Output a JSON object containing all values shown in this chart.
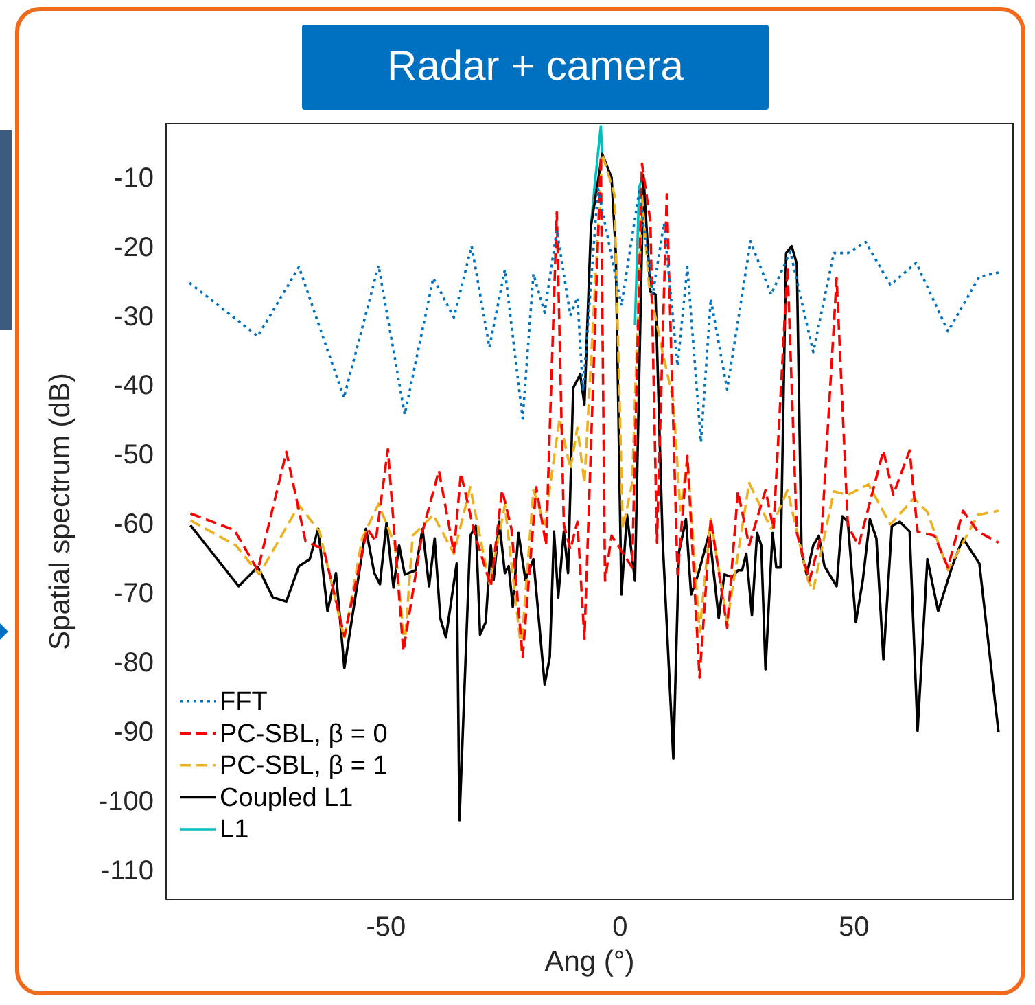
{
  "chart_data": {
    "type": "line",
    "title": "Radar + camera",
    "xlabel": "Ang (°)",
    "ylabel": "Spatial spectrum (dB)",
    "xlim": [
      -97,
      84
    ],
    "ylim": [
      -114,
      -2
    ],
    "xticks": [
      -50,
      0,
      50
    ],
    "yticks": [
      -110,
      -100,
      -90,
      -80,
      -70,
      -60,
      -50,
      -40,
      -30,
      -20,
      -10
    ],
    "grid": false,
    "legend": "bottom left",
    "series": [
      {
        "name": "FFT",
        "color": "#0072bd",
        "line_style": "dotted",
        "x": [
          -92,
          -77.4,
          -68.6,
          -59,
          -51.6,
          -46,
          -39.9,
          -35.5,
          -31.7,
          -27.9,
          -24.6,
          -20.8,
          -18.5,
          -16.1,
          -13.5,
          -10.6,
          -9.1,
          -7.9,
          -4.7,
          0.3,
          4.1,
          7,
          9.4,
          12.3,
          14.4,
          17.3,
          19.4,
          22.9,
          27.9,
          32.3,
          36.4,
          41.3,
          45.7,
          48.7,
          52.5,
          57.8,
          63.3,
          70.1,
          76.8,
          80.9
        ],
        "values": [
          -25,
          -32.7,
          -22.7,
          -41.6,
          -22.5,
          -44,
          -24.3,
          -30,
          -19.7,
          -34.3,
          -23.1,
          -44.6,
          -23.7,
          -29.3,
          -17.4,
          -29.7,
          -27.1,
          -40.6,
          -11.4,
          -28.3,
          -11.8,
          -26.7,
          -16.4,
          -37,
          -22.7,
          -48,
          -27.3,
          -40.4,
          -19,
          -26.7,
          -20.5,
          -35,
          -20.7,
          -20.7,
          -19.1,
          -25.3,
          -22.1,
          -32,
          -24.1,
          -23.5
        ]
      },
      {
        "name": "PC-SBL, β = 0",
        "color": "#ff0000",
        "line_style": "dashed",
        "x": [
          -91.8,
          -82.4,
          -77.4,
          -71.3,
          -67.2,
          -63.3,
          -58.9,
          -54,
          -52.2,
          -49.6,
          -46.3,
          -42.2,
          -38.7,
          -35.5,
          -34,
          -31.1,
          -27.6,
          -25.2,
          -23.2,
          -20.8,
          -17.9,
          -15.8,
          -13.5,
          -12,
          -10.6,
          -9.1,
          -7.6,
          -4.1,
          -3.2,
          -1.8,
          2.6,
          4.7,
          6.5,
          7.9,
          10,
          12.3,
          14.4,
          17,
          19.4,
          22.9,
          25.2,
          27.6,
          31.1,
          32.8,
          35.8,
          37.8,
          40.5,
          43.1,
          46.3,
          48.7,
          51,
          56.3,
          58.4,
          61.9,
          63.6,
          67.2,
          70.1,
          73.3,
          76.5,
          80.9
        ],
        "values": [
          -58.3,
          -60.7,
          -66.5,
          -49.4,
          -62.3,
          -63.5,
          -76,
          -60.5,
          -62.3,
          -49,
          -78.2,
          -60.9,
          -52.1,
          -63.9,
          -52.5,
          -61.1,
          -68.8,
          -54.9,
          -60.5,
          -79,
          -54.5,
          -62.9,
          -14.8,
          -59.9,
          -63.5,
          -59.5,
          -76.4,
          -6.8,
          -68,
          -61.5,
          -66.1,
          -7.8,
          -16.2,
          -62.5,
          -12.2,
          -67.1,
          -50,
          -82,
          -59.1,
          -74.8,
          -55.1,
          -62.9,
          -54.9,
          -60.5,
          -22.7,
          -61.1,
          -68,
          -61.1,
          -24.3,
          -60.1,
          -62.9,
          -49.2,
          -55.6,
          -49.2,
          -60.9,
          -61.5,
          -66.1,
          -57.9,
          -60.9,
          -62.5
        ]
      },
      {
        "name": "PC-SBL, β = 1",
        "color": "#edb120",
        "line_style": "dashed",
        "x": [
          -91.8,
          -82.1,
          -77.1,
          -68.6,
          -64.2,
          -58.9,
          -55.1,
          -51.6,
          -48.1,
          -46,
          -44.3,
          -39.9,
          -35.5,
          -32,
          -27.9,
          -24.6,
          -21.1,
          -18.5,
          -16.1,
          -12.9,
          -10.6,
          -9.1,
          -7.6,
          -3.8,
          -1.2,
          0.6,
          2.6,
          4.7,
          6.2,
          9.1,
          11.4,
          12.9,
          14.4,
          17,
          19.4,
          22.9,
          27.6,
          32.3,
          35.8,
          40.2,
          41.3,
          45.7,
          48.7,
          53.1,
          57.8,
          62.8,
          65.7,
          70.1,
          76.5,
          80.9
        ],
        "values": [
          -59.3,
          -62.9,
          -67.1,
          -57.1,
          -60.9,
          -76.4,
          -61.9,
          -56.9,
          -62.9,
          -77.4,
          -61.5,
          -58.5,
          -64.1,
          -54.5,
          -68.5,
          -57.1,
          -78,
          -54.9,
          -59.9,
          -44.6,
          -51.9,
          -45.9,
          -53.9,
          -6.4,
          -12.2,
          -60.5,
          -53.9,
          -12.4,
          -25.3,
          -35,
          -42,
          -57.9,
          -50.2,
          -75.4,
          -59.1,
          -74,
          -53.9,
          -60.5,
          -54.9,
          -68,
          -69.4,
          -55.1,
          -55.6,
          -54.1,
          -59.9,
          -56.1,
          -58.1,
          -66.5,
          -58.5,
          -57.9
        ]
      },
      {
        "name": "Coupled L1",
        "color": "#000000",
        "line_style": "solid",
        "x": [
          -91.8,
          -81.5,
          -77.4,
          -74.2,
          -71.3,
          -68.6,
          -66.3,
          -64.5,
          -62.5,
          -60.7,
          -58.9,
          -54.3,
          -52.5,
          -51.3,
          -49.9,
          -48.4,
          -47.2,
          -46,
          -43.7,
          -42.2,
          -40.8,
          -39.6,
          -38.4,
          -37.2,
          -34.9,
          -34.3,
          -32,
          -30.8,
          -29.9,
          -28.7,
          -27.6,
          -27,
          -25.8,
          -24.6,
          -23.8,
          -22.9,
          -21.7,
          -20.2,
          -18.5,
          -16.1,
          -15,
          -14.1,
          -13.2,
          -12,
          -11.1,
          -10,
          -8.5,
          -7.6,
          -6.2,
          -3.8,
          -1.8,
          -0.9,
          0.3,
          1.5,
          3.2,
          5,
          6.5,
          7.6,
          9.1,
          11.4,
          12.6,
          14.1,
          15.2,
          16.7,
          19.1,
          21.1,
          22.3,
          24,
          25.2,
          26.1,
          27,
          28.2,
          29.3,
          30.2,
          31.1,
          32.6,
          33.4,
          34.3,
          35.5,
          36.7,
          37.8,
          38.8,
          39.9,
          41.3,
          42.5,
          43.7,
          46.3,
          47.5,
          48.7,
          50.4,
          51.9,
          53.4,
          54.8,
          56.3,
          58.1,
          59.8,
          61.9,
          63.6,
          65.7,
          68,
          71,
          73.3,
          76.8,
          80.9
        ],
        "values": [
          -60,
          -68.8,
          -66,
          -70.4,
          -71,
          -65.9,
          -64.9,
          -60.5,
          -72.4,
          -66.9,
          -80.6,
          -60.5,
          -66.9,
          -68.5,
          -59.7,
          -69,
          -62.9,
          -67.1,
          -66.5,
          -60.5,
          -68.8,
          -61.9,
          -73.4,
          -76.2,
          -65.5,
          -102.6,
          -61.5,
          -60.1,
          -75.8,
          -74,
          -62.9,
          -67.9,
          -59.5,
          -66.9,
          -65.9,
          -71.8,
          -61.1,
          -67.9,
          -64.9,
          -83,
          -79,
          -60.9,
          -70.4,
          -60.9,
          -66.9,
          -40.2,
          -38.2,
          -42.6,
          -16.8,
          -6.4,
          -9.8,
          -20.7,
          -70,
          -58.5,
          -68,
          -9.4,
          -26.3,
          -26.7,
          -61.9,
          -93.7,
          -63.9,
          -59.1,
          -70,
          -67.1,
          -61.1,
          -73.4,
          -67.1,
          -67.5,
          -66.5,
          -66.5,
          -64.1,
          -73,
          -61.1,
          -62.9,
          -80.8,
          -61.1,
          -66.1,
          -66.1,
          -20.7,
          -19.7,
          -22.3,
          -63.9,
          -67.1,
          -62.9,
          -61.5,
          -65.9,
          -68.8,
          -58.7,
          -59.5,
          -74,
          -67.9,
          -59.1,
          -61.9,
          -79.4,
          -60.1,
          -59.5,
          -60.9,
          -89.7,
          -64.9,
          -72.4,
          -65.9,
          -61.9,
          -65.5,
          -89.9
        ]
      },
      {
        "name": "L1",
        "color": "#00bfbf",
        "line_style": "solid",
        "x": [
          -6.2,
          -5.3,
          -4.1,
          -3.8,
          0.3,
          3.2,
          4.1,
          5
        ],
        "values": [
          -16.8,
          -10.2,
          -2.4,
          -6.4,
          null,
          -31.1,
          -11.2,
          -9.4
        ]
      }
    ]
  }
}
